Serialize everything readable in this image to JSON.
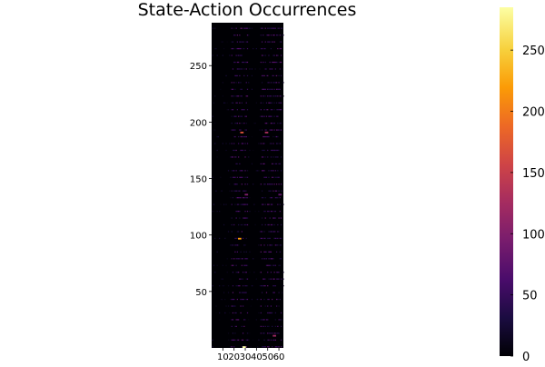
{
  "chart_data": {
    "type": "heatmap",
    "title": "State-Action Occurrences",
    "xlabel": "",
    "ylabel": "",
    "x_range": [
      1,
      64
    ],
    "y_range": [
      1,
      288
    ],
    "x_ticks": [
      "10",
      "20",
      "30",
      "40",
      "50",
      "60"
    ],
    "y_ticks": [
      "50",
      "100",
      "150",
      "200",
      "250"
    ],
    "colorbar": {
      "colormap": "inferno",
      "range": [
        0,
        285
      ],
      "ticks": [
        "0",
        "50",
        "100",
        "150",
        "200",
        "250"
      ]
    },
    "grid": false,
    "notable_cells": [
      {
        "x": 28,
        "y": 1,
        "value": 285
      },
      {
        "x": 24,
        "y": 97,
        "value": 220
      },
      {
        "x": 26,
        "y": 191,
        "value": 170
      },
      {
        "x": 48,
        "y": 191,
        "value": 130
      },
      {
        "x": 55,
        "y": 11,
        "value": 120
      },
      {
        "x": 30,
        "y": 136,
        "value": 100
      },
      {
        "x": 60,
        "y": 136,
        "value": 80
      }
    ]
  },
  "colors": {
    "background": "#000004",
    "colormap_stops": [
      "#000004",
      "#1b0c41",
      "#4a0c6b",
      "#781c6d",
      "#a52c60",
      "#cf4446",
      "#ed6925",
      "#fb9b06",
      "#f7d13d",
      "#fcffa4"
    ]
  }
}
